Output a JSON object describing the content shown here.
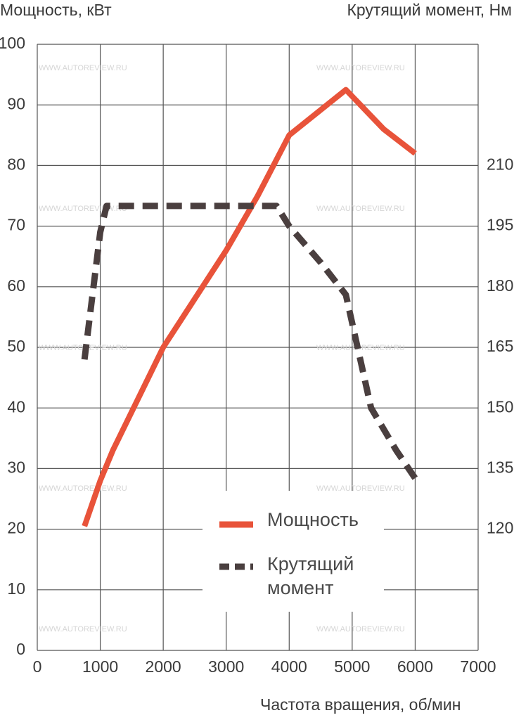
{
  "chart_data": {
    "type": "line",
    "y_label": "Мощность, кВт",
    "y2_label": "Крутящий момент, Нм",
    "x_label": "Частота вращения, об/мин",
    "watermark": "WWW.AUTOREVIEW.RU",
    "xlim": [
      0,
      7000
    ],
    "xticks": [
      0,
      1000,
      2000,
      3000,
      4000,
      5000,
      6000,
      7000
    ],
    "ylim": [
      0,
      100
    ],
    "yticks": [
      0,
      10,
      20,
      30,
      40,
      50,
      60,
      70,
      80,
      90,
      100
    ],
    "y2lim": [
      90,
      240
    ],
    "y2ticks": [
      120,
      135,
      150,
      165,
      180,
      195,
      210
    ],
    "grid": true,
    "series": [
      {
        "name": "Мощность",
        "color": "#e8533a",
        "style": "solid",
        "x": [
          750,
          1000,
          1200,
          2000,
          3000,
          3500,
          4000,
          4900,
          5500,
          6000
        ],
        "values": [
          20.5,
          28,
          33,
          50,
          66,
          75,
          85,
          92.5,
          86,
          82
        ]
      },
      {
        "name": "Крутящий момент",
        "color": "#4a3f3f",
        "style": "dashed",
        "axis": "y2",
        "x": [
          750,
          1000,
          1100,
          3800,
          4000,
          4500,
          4900,
          5300,
          5700,
          6000
        ],
        "values": [
          162,
          193.5,
          200,
          200,
          195,
          186,
          178,
          150,
          139.5,
          132.6
        ]
      }
    ]
  }
}
